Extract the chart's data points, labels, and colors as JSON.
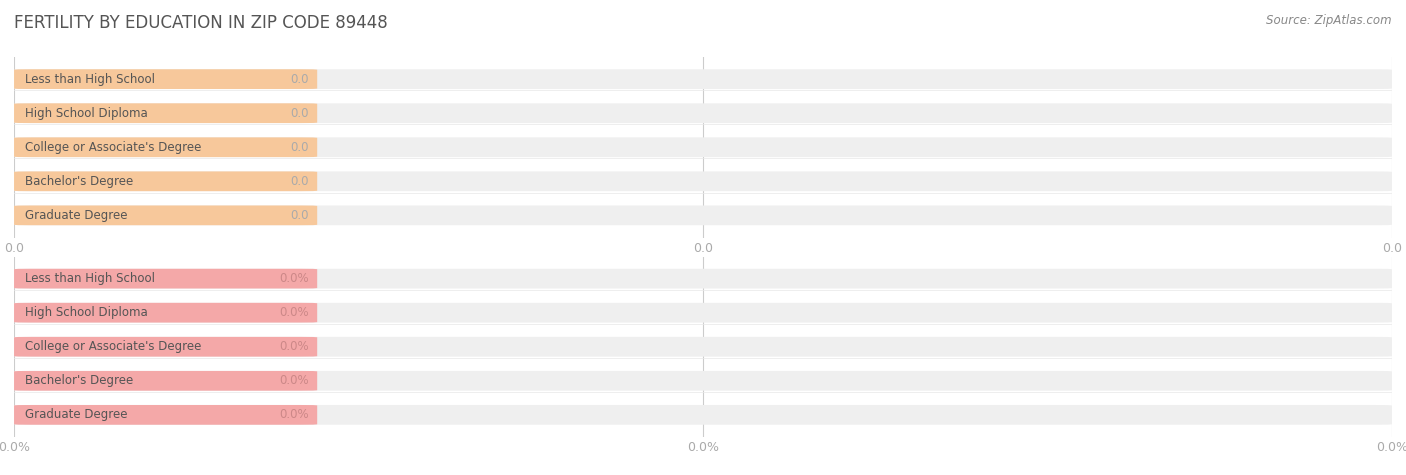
{
  "title": "FERTILITY BY EDUCATION IN ZIP CODE 89448",
  "source_text": "Source: ZipAtlas.com",
  "categories": [
    "Less than High School",
    "High School Diploma",
    "College or Associate's Degree",
    "Bachelor's Degree",
    "Graduate Degree"
  ],
  "top_values": [
    0.0,
    0.0,
    0.0,
    0.0,
    0.0
  ],
  "bottom_values": [
    0.0,
    0.0,
    0.0,
    0.0,
    0.0
  ],
  "top_bar_color": "#F7C89B",
  "top_bar_bg": "#EFEFEF",
  "bottom_bar_color": "#F4A8A8",
  "bottom_bar_bg": "#EFEFEF",
  "label_color": "#555555",
  "top_value_color": "#AAAAAA",
  "bottom_value_color": "#CC8888",
  "title_color": "#555555",
  "tick_color": "#AAAAAA",
  "bg_color": "#FFFFFF",
  "top_tick_labels": [
    "0.0",
    "0.0",
    "0.0"
  ],
  "bottom_tick_labels": [
    "0.0%",
    "0.0%",
    "0.0%"
  ],
  "source_color": "#888888"
}
